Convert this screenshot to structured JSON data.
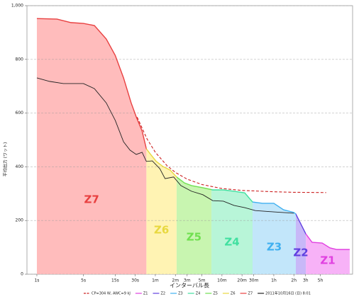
{
  "chart_data": {
    "type": "power-duration",
    "y_label": "平均出力 (ワット)",
    "x_label": "インターバル長",
    "log_x": true,
    "grid": true,
    "legend": "bottom",
    "xlim": [
      0.71,
      54800
    ],
    "ylim": [
      0,
      1000
    ],
    "yticks": [
      0,
      200,
      400,
      600,
      800,
      {
        "value": 1000,
        "label": "1,000"
      }
    ],
    "xticks": [
      {
        "value": 1,
        "label": "1s"
      },
      {
        "value": 5,
        "label": "5s"
      },
      {
        "value": 15,
        "label": "15s"
      },
      {
        "value": 30,
        "label": "30s"
      },
      {
        "value": 60,
        "label": "1m"
      },
      {
        "value": 120,
        "label": "2m"
      },
      {
        "value": 180,
        "label": "3m"
      },
      {
        "value": 300,
        "label": "5m"
      },
      {
        "value": 600,
        "label": "10m"
      },
      {
        "value": 1200,
        "label": "20m"
      },
      {
        "value": 1800,
        "label": "30m"
      },
      {
        "value": 3600,
        "label": "1h"
      },
      {
        "value": 7200,
        "label": "2h"
      },
      {
        "value": 10800,
        "label": "3h"
      },
      {
        "value": 18000,
        "label": "5h"
      }
    ],
    "best_curve": {
      "x": [
        1,
        2,
        3.25,
        5,
        7.3,
        11,
        15,
        20,
        26,
        31,
        38,
        44,
        51,
        62,
        78,
        100,
        125,
        164,
        209,
        310,
        436,
        630,
        910,
        1318,
        1727,
        2430,
        3600,
        5040,
        7200,
        7700,
        10900,
        13500,
        19200,
        25000,
        31800,
        49600
      ],
      "values": [
        952,
        950,
        937,
        934,
        926,
        876,
        815,
        731,
        638,
        586,
        533,
        467,
        446,
        420,
        401,
        388,
        362,
        340,
        330,
        322,
        314,
        314,
        309,
        303,
        269,
        264,
        264,
        240,
        230,
        224,
        150,
        119,
        116,
        98,
        92,
        92
      ]
    },
    "cp_model": {
      "name": "CP=304 W, AWC=9 kJ",
      "color": "#cc2020",
      "x": [
        32,
        45,
        60,
        90,
        120,
        180,
        300,
        600,
        1200,
        3600,
        7200,
        22000
      ],
      "values": [
        585,
        504,
        454,
        404,
        379,
        354,
        334,
        319,
        312,
        307,
        305,
        304
      ]
    },
    "zones": [
      {
        "name": "Z1",
        "color": "#f7b2f7",
        "line_color": "#e040e0",
        "xrange": [
          10900,
          49600
        ]
      },
      {
        "name": "Z2",
        "color": "#c8b8f8",
        "line_color": "#6040e0",
        "xrange": [
          7710,
          10900
        ]
      },
      {
        "name": "Z3",
        "color": "#c2e6fa",
        "line_color": "#40b0f0",
        "xrange": [
          1727,
          7710
        ]
      },
      {
        "name": "Z4",
        "color": "#b8f5d8",
        "line_color": "#40e0a0",
        "xrange": [
          417,
          1727
        ]
      },
      {
        "name": "Z5",
        "color": "#c8f5b0",
        "line_color": "#70e050",
        "xrange": [
          125,
          417
        ]
      },
      {
        "name": "Z6",
        "color": "#fff3b3",
        "line_color": "#e8d840",
        "xrange": [
          44,
          125
        ]
      },
      {
        "name": "Z7",
        "color": "#ffbcbc",
        "line_color": "#e84040",
        "xrange": [
          1,
          44
        ]
      }
    ],
    "series": [
      {
        "name": "2011年10月16日 (日) 8:01",
        "color": "#222222",
        "x": [
          1,
          1.55,
          2.5,
          5,
          7.3,
          11,
          15,
          20,
          25,
          31,
          38,
          44,
          54,
          70,
          84,
          113,
          145,
          209,
          310,
          436,
          630,
          910,
          1318,
          1900,
          3600,
          7200
        ],
        "values": [
          731,
          718,
          710,
          710,
          691,
          638,
          573,
          493,
          462,
          446,
          454,
          420,
          422,
          393,
          356,
          362,
          330,
          309,
          296,
          274,
          272,
          256,
          248,
          237,
          232,
          227
        ]
      }
    ]
  }
}
